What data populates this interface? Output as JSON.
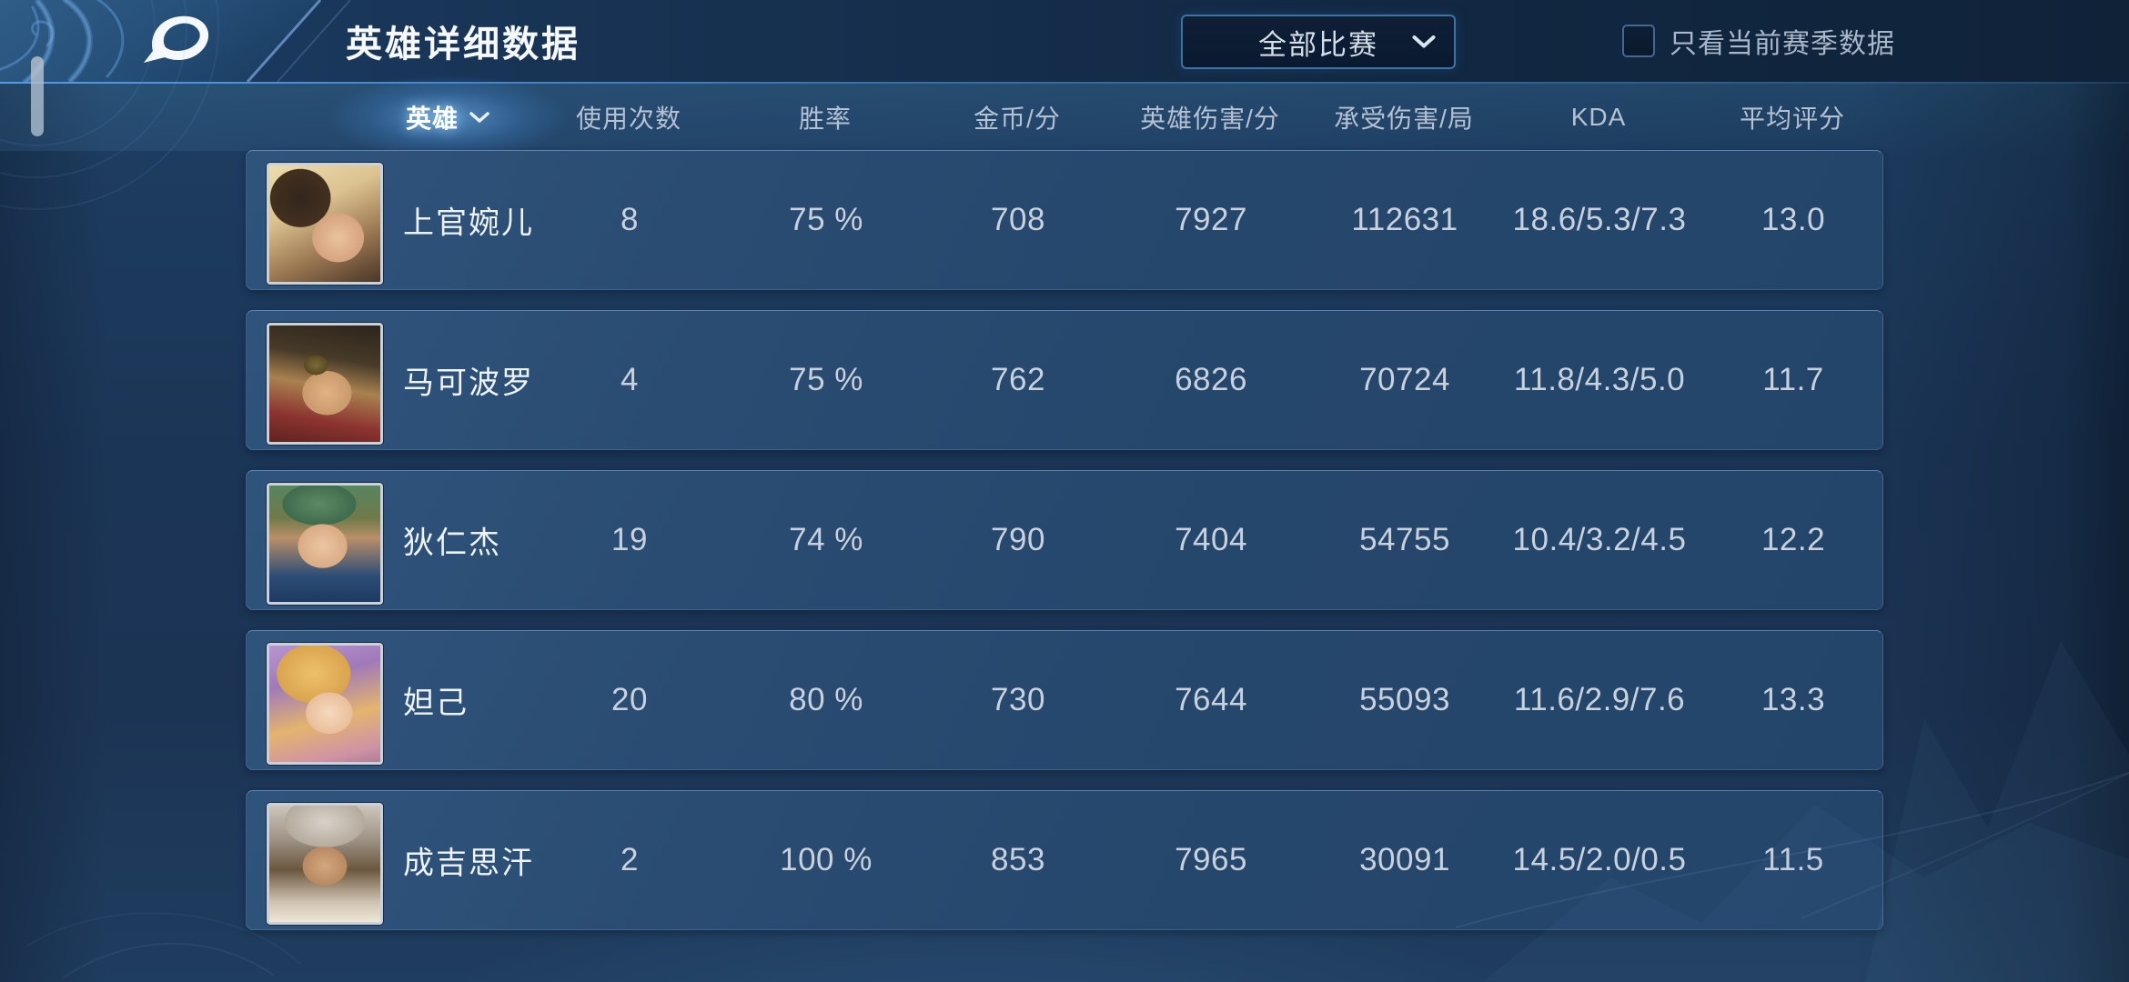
{
  "header": {
    "title": "英雄详细数据",
    "filter_dropdown": {
      "value": "全部比赛"
    },
    "season_checkbox": {
      "label": "只看当前赛季数据",
      "checked": false
    }
  },
  "table": {
    "columns": [
      {
        "key": "hero",
        "label": "英雄",
        "selected": true
      },
      {
        "key": "usage",
        "label": "使用次数"
      },
      {
        "key": "winrate",
        "label": "胜率"
      },
      {
        "key": "gold",
        "label": "金币/分"
      },
      {
        "key": "dmg",
        "label": "英雄伤害/分"
      },
      {
        "key": "taken",
        "label": "承受伤害/局"
      },
      {
        "key": "kda",
        "label": "KDA"
      },
      {
        "key": "score",
        "label": "平均评分"
      }
    ],
    "rows": [
      {
        "name": "上官婉儿",
        "usage": "8",
        "winrate": "75 %",
        "gold": "708",
        "dmg": "7927",
        "taken": "112631",
        "kda": "18.6/5.3/7.3",
        "score": "13.0",
        "avatar_bg": "radial-gradient(42% 38% at 62% 62%, #e9c39c 0%, #d6a37f 55%, rgba(0,0,0,0) 56%), radial-gradient(60% 55% at 28% 28%, #33261c 0%, #43301f 45%, rgba(0,0,0,0) 46%), linear-gradient(155deg, #ecdcae 0%, #dcc290 35%, #9a7752 68%, #4a3526 100%)"
      },
      {
        "name": "马可波罗",
        "usage": "4",
        "winrate": "75 %",
        "gold": "762",
        "dmg": "6826",
        "taken": "70724",
        "kda": "11.8/4.3/5.0",
        "score": "11.7",
        "avatar_bg": "radial-gradient(18% 14% at 42% 34%, #7a6a34 0%, #5a4a24 60%, rgba(0,0,0,0) 61%), radial-gradient(40% 34% at 52% 58%, #e2b285 0%, #c99a6b 55%, rgba(0,0,0,0) 56%), linear-gradient(190deg, #2c251c 0%, #473a28 30%, #a9824f 52%, #8c3330 78%, #5f231f 100%)"
      },
      {
        "name": "狄仁杰",
        "usage": "19",
        "winrate": "74 %",
        "gold": "790",
        "dmg": "7404",
        "taken": "54755",
        "kda": "10.4/3.2/4.5",
        "score": "12.2",
        "avatar_bg": "radial-gradient(40% 34% at 48% 52%, #ecc6a2 0%, #d8ab84 55%, rgba(0,0,0,0) 56%), radial-gradient(55% 30% at 45% 16%, #5d8a62 0%, #3f6b4e 60%, rgba(0,0,0,0) 61%), linear-gradient(180deg, #57855f 0%, #6f7a4a 28%, #b98f68 45%, #2c4c76 78%, #1e3a60 100%)"
      },
      {
        "name": "妲己",
        "usage": "20",
        "winrate": "80 %",
        "gold": "730",
        "dmg": "7644",
        "taken": "55093",
        "kda": "11.6/2.9/7.6",
        "score": "13.3",
        "avatar_bg": "radial-gradient(38% 32% at 54% 58%, #f6d9bd 0%, #e9bf9b 55%, rgba(0,0,0,0) 56%), radial-gradient(55% 42% at 40% 24%, #eec06a 0%, #d9a54e 60%, rgba(0,0,0,0) 61%), linear-gradient(165deg, #b795cf 0%, #a07ab8 30%, #e4b46e 62%, #cf93a4 88%, #b27d96 100%)"
      },
      {
        "name": "成吉思汗",
        "usage": "2",
        "winrate": "100 %",
        "gold": "853",
        "dmg": "7965",
        "taken": "30091",
        "kda": "14.5/2.0/0.5",
        "score": "11.5",
        "avatar_bg": "radial-gradient(36% 30% at 50% 52%, #d2a67e 0%, #b98a62 55%, rgba(0,0,0,0) 56%), radial-gradient(60% 36% at 50% 14%, #d7d2c9 0%, #b5ab9d 60%, rgba(0,0,0,0) 61%), linear-gradient(180deg, #cdc6bc 0%, #9c9183 30%, #6b573f 55%, #cdc0ae 82%, #efe7d8 100%)"
      }
    ]
  },
  "colors": {
    "accent_blue": "#4aa3e8",
    "card_blue": "#27496d",
    "background_navy": "#1b3556",
    "topbar_navy": "#122944",
    "dropdown_border": "#3f72a3",
    "text_primary": "#f5f9fd",
    "text_muted": "#c8d2dd",
    "header_text": "#b4c1d2"
  }
}
